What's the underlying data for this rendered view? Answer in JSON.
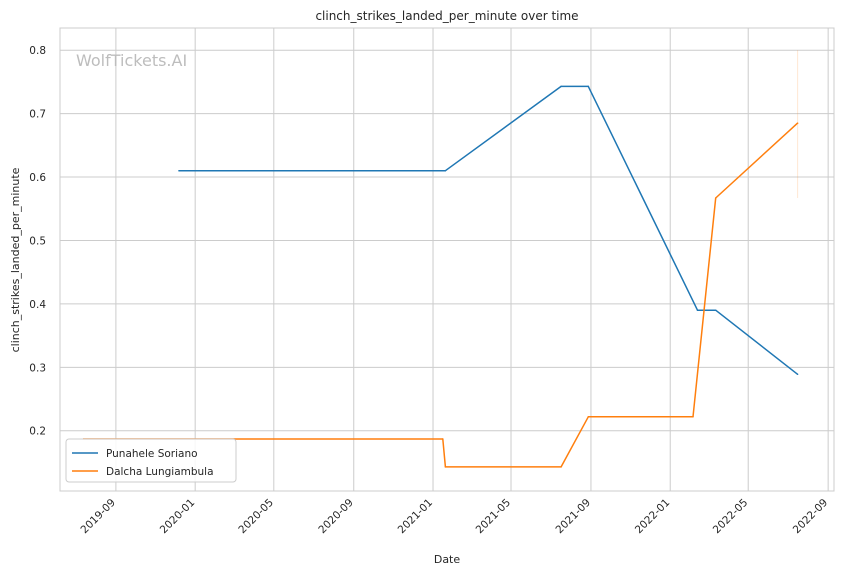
{
  "chart_data": {
    "type": "line",
    "title": "clinch_strikes_landed_per_minute over time",
    "xlabel": "Date",
    "ylabel": "clinch_strikes_landed_per_minute",
    "watermark": "WolfTickets.AI",
    "grid": true,
    "legend_position": "lower-left",
    "xlim": [
      "2019-06-07",
      "2022-09-10"
    ],
    "ylim": [
      0.105,
      0.835
    ],
    "x_ticks": [
      "2019-09",
      "2020-01",
      "2020-05",
      "2020-09",
      "2021-01",
      "2021-05",
      "2021-09",
      "2022-01",
      "2022-05",
      "2022-09"
    ],
    "y_ticks": [
      "0.2",
      "0.3",
      "0.4",
      "0.5",
      "0.6",
      "0.7",
      "0.8"
    ],
    "series": [
      {
        "name": "Punahele Soriano",
        "color": "#1f77b4",
        "points": [
          {
            "x": "2019-12-07",
            "y": 0.61
          },
          {
            "x": "2021-01-20",
            "y": 0.61
          },
          {
            "x": "2021-07-17",
            "y": 0.743
          },
          {
            "x": "2021-08-28",
            "y": 0.743
          },
          {
            "x": "2022-02-12",
            "y": 0.39
          },
          {
            "x": "2022-03-12",
            "y": 0.39
          },
          {
            "x": "2022-07-16",
            "y": 0.289
          }
        ]
      },
      {
        "name": "Dalcha Lungiambula",
        "color": "#ff7f0e",
        "points": [
          {
            "x": "2019-07-13",
            "y": 0.187
          },
          {
            "x": "2021-01-16",
            "y": 0.187
          },
          {
            "x": "2021-01-20",
            "y": 0.143
          },
          {
            "x": "2021-07-17",
            "y": 0.143
          },
          {
            "x": "2021-08-28",
            "y": 0.222
          },
          {
            "x": "2022-02-05",
            "y": 0.222
          },
          {
            "x": "2022-03-12",
            "y": 0.567
          },
          {
            "x": "2022-07-16",
            "y": 0.685
          }
        ]
      }
    ]
  }
}
